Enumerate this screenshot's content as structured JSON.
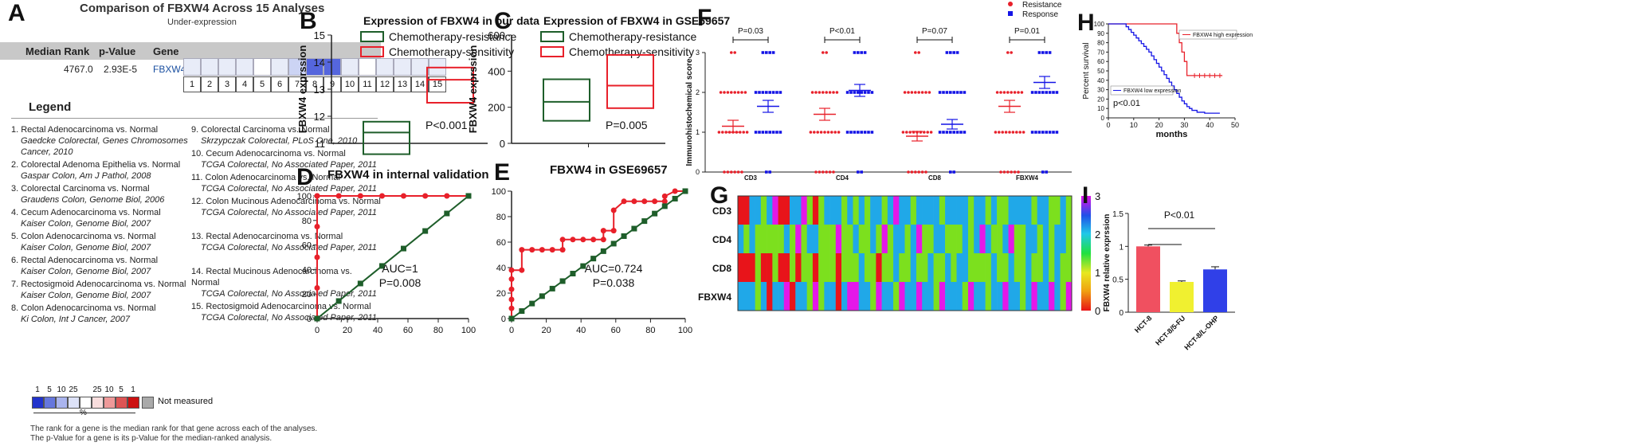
{
  "panels": {
    "A": {
      "letter": "A",
      "title": "Comparison of FBXW4 Across 15 Analyses",
      "subtitle": "Under-expression",
      "header": {
        "rank": "Median Rank",
        "pvalue": "p-Value",
        "gene": "Gene"
      },
      "row": {
        "rank": "4767.0",
        "pvalue": "2.93E-5",
        "gene": "FBXW4"
      },
      "cell_numbers": [
        "1",
        "2",
        "3",
        "4",
        "5",
        "6",
        "7",
        "8",
        "9",
        "10",
        "11",
        "12",
        "13",
        "14",
        "15"
      ],
      "cell_colors": [
        "#e8ecf8",
        "#e8ecf8",
        "#e8ecf8",
        "#e8ecf8",
        "#ffffff",
        "#e8ecf8",
        "#ccd4f4",
        "#5566dd",
        "#5566dd",
        "#e8ecf8",
        "#ffffff",
        "#e8ecf8",
        "#e8ecf8",
        "#e8ecf8",
        "#e8ecf8"
      ],
      "legend_heading": "Legend",
      "legend_left": [
        {
          "title": "1. Rectal Adenocarcinoma vs. Normal",
          "ref": "Gaedcke Colorectal, Genes Chromosomes Cancer, 2010"
        },
        {
          "title": "2. Colorectal Adenoma Epithelia vs. Normal",
          "ref": "Gaspar Colon, Am J Pathol, 2008"
        },
        {
          "title": "3. Colorectal Carcinoma vs. Normal",
          "ref": "Graudens Colon, Genome Biol, 2006"
        },
        {
          "title": "4. Cecum Adenocarcinoma vs. Normal",
          "ref": "Kaiser Colon, Genome Biol, 2007"
        },
        {
          "title": "5. Colon Adenocarcinoma vs. Normal",
          "ref": "Kaiser Colon, Genome Biol, 2007"
        },
        {
          "title": "6. Rectal Adenocarcinoma vs. Normal",
          "ref": "Kaiser Colon, Genome Biol, 2007"
        },
        {
          "title": "7. Rectosigmoid Adenocarcinoma vs. Normal",
          "ref": "Kaiser Colon, Genome Biol, 2007"
        },
        {
          "title": "8. Colon Adenocarcinoma vs. Normal",
          "ref": "Ki Colon, Int J Cancer, 2007"
        }
      ],
      "legend_right": [
        {
          "title": "9. Colorectal Carcinoma vs. Normal",
          "ref": "Skrzypczak Colorectal, PLoS One, 2010"
        },
        {
          "title": "10. Cecum Adenocarcinoma vs. Normal",
          "ref": "TCGA Colorectal, No Associated Paper, 2011"
        },
        {
          "title": "11. Colon Adenocarcinoma vs. Normal",
          "ref": "TCGA Colorectal, No Associated Paper, 2011"
        },
        {
          "title": "12. Colon Mucinous Adenocarcinoma vs. Normal",
          "ref": "TCGA Colorectal, No Associated Paper, 2011"
        },
        {
          "title": "13. Rectal Adenocarcinoma vs. Normal",
          "ref": "TCGA Colorectal, No Associated Paper, 2011"
        },
        {
          "title": "14. Rectal Mucinous Adenocarcinoma vs. Normal",
          "ref": "TCGA Colorectal, No Associated Paper, 2011"
        },
        {
          "title": "15. Rectosigmoid Adenocarcinoma vs. Normal",
          "ref": "TCGA Colorectal, No Associated Paper, 2011"
        }
      ],
      "scale_labels": [
        "1",
        "5",
        "10",
        "25",
        "",
        "25",
        "10",
        "5",
        "1"
      ],
      "scale_colors": [
        "#2233cc",
        "#6677dd",
        "#aab4ee",
        "#dde2f8",
        "#ffffff",
        "#f8dddd",
        "#ee9999",
        "#dd5555",
        "#cc1111"
      ],
      "scale_unit": "%",
      "not_measured": "Not measured",
      "footnote1": "The rank for a gene is the median rank for that gene across each of the analyses.",
      "footnote2": "The p-Value for a gene is its p-Value for the median-ranked analysis."
    },
    "B": {
      "letter": "B"
    },
    "C": {
      "letter": "C"
    },
    "D": {
      "letter": "D"
    },
    "E": {
      "letter": "E"
    },
    "F": {
      "letter": "F"
    },
    "G": {
      "letter": "G"
    },
    "H": {
      "letter": "H"
    },
    "I": {
      "letter": "I"
    }
  },
  "colors": {
    "green": "#1e5e2a",
    "red": "#e8202a",
    "blue": "#1414e6",
    "grid": "#222222"
  },
  "chart_data": [
    {
      "id": "B",
      "type": "box",
      "title": "Expression of FBXW4 in our data",
      "ylabel": "FBXW4 exprssion",
      "ylim": [
        11,
        15
      ],
      "yticks": [
        11,
        12,
        13,
        14,
        15
      ],
      "legend": [
        "Chemotherapy-resistance",
        "Chemotherapy-sensitivity"
      ],
      "boxes": [
        {
          "name": "Chemotherapy-resistance",
          "low": 10.6,
          "mid": 11.4,
          "high": 11.8
        },
        {
          "name": "Chemotherapy-sensitivity",
          "low": 12.5,
          "mid": 13.35,
          "high": 13.8
        }
      ],
      "annotation": "P<0.001"
    },
    {
      "id": "C",
      "type": "box",
      "title": "Expression of FBXW4 in GSE69657",
      "ylabel": "FBXW4 exprssion",
      "ylim": [
        0,
        600
      ],
      "yticks": [
        0,
        200,
        400,
        600
      ],
      "legend": [
        "Chemotherapy-resistance",
        "Chemotherapy-sensitivity"
      ],
      "boxes": [
        {
          "name": "Chemotherapy-resistance",
          "low": 125,
          "mid": 230,
          "high": 355
        },
        {
          "name": "Chemotherapy-sensitivity",
          "low": 195,
          "mid": 320,
          "high": 490
        }
      ],
      "annotation": "P=0.005"
    },
    {
      "id": "D",
      "type": "line",
      "title": "FBXW4 in internal validation",
      "xlim": [
        0,
        100
      ],
      "ylim": [
        0,
        100
      ],
      "xticks": [
        0,
        20,
        40,
        60,
        80,
        100
      ],
      "yticks": [
        0,
        20,
        40,
        60,
        80,
        100
      ],
      "series": [
        {
          "name": "ROC",
          "x": [
            0,
            0,
            0,
            0,
            0,
            0,
            14.3,
            28.6,
            42.9,
            57.1,
            71.4,
            85.7,
            100
          ],
          "y": [
            0,
            25,
            50,
            75,
            100,
            100,
            100,
            100,
            100,
            100,
            100,
            100,
            100
          ]
        },
        {
          "name": "Reference",
          "x": [
            0,
            14.3,
            28.6,
            42.9,
            57.1,
            71.4,
            85.7,
            100
          ],
          "y": [
            0,
            14.3,
            28.6,
            42.9,
            57.1,
            71.4,
            85.7,
            100
          ]
        }
      ],
      "annotation": [
        "AUC=1",
        "P=0.008"
      ]
    },
    {
      "id": "E",
      "type": "line",
      "title": "FBXW4 in GSE69657",
      "xlim": [
        0,
        100
      ],
      "ylim": [
        0,
        100
      ],
      "xticks": [
        0,
        20,
        40,
        60,
        80,
        100
      ],
      "yticks": [
        0,
        20,
        40,
        60,
        80,
        100
      ],
      "series": [
        {
          "name": "ROC",
          "x": [
            0,
            0,
            0,
            0,
            0,
            0,
            5.9,
            5.9,
            11.8,
            17.6,
            23.5,
            29.4,
            29.4,
            35.3,
            41.2,
            47.1,
            52.9,
            52.9,
            58.8,
            58.8,
            64.7,
            70.6,
            76.5,
            82.4,
            88.2,
            88.2,
            94.1,
            100
          ],
          "y": [
            0,
            8,
            15,
            23,
            31,
            38,
            38,
            54,
            54,
            54,
            54,
            54,
            62,
            62,
            62,
            62,
            62,
            69,
            69,
            85,
            92,
            92,
            92,
            92,
            92,
            96,
            100,
            100
          ]
        },
        {
          "name": "Reference",
          "x": [
            0,
            5.9,
            11.8,
            17.6,
            23.5,
            29.4,
            35.3,
            41.2,
            47.1,
            52.9,
            58.8,
            64.7,
            70.6,
            76.5,
            82.4,
            88.2,
            94.1,
            100
          ],
          "y": [
            0,
            5.9,
            11.8,
            17.6,
            23.5,
            29.4,
            35.3,
            41.2,
            47.1,
            52.9,
            58.8,
            64.7,
            70.6,
            76.5,
            82.4,
            88.2,
            94.1,
            100
          ]
        }
      ],
      "annotation": [
        "AUC=0.724",
        "P=0.038"
      ]
    },
    {
      "id": "F",
      "type": "scatter",
      "ylabel": "Immunohistochemical score",
      "ylim": [
        0,
        3
      ],
      "yticks": [
        0,
        1,
        2,
        3
      ],
      "categories": [
        "CD3",
        "CD4",
        "CD8",
        "FBXW4"
      ],
      "legend": [
        "Resistance",
        "Response"
      ],
      "groups": [
        {
          "category": "CD3",
          "resistance_mean": 1.15,
          "resistance_err": 0.15,
          "response_mean": 1.65,
          "response_err": 0.15,
          "p": "P=0.03"
        },
        {
          "category": "CD4",
          "resistance_mean": 1.45,
          "resistance_err": 0.15,
          "response_mean": 2.05,
          "response_err": 0.15,
          "p": "P<0.01"
        },
        {
          "category": "CD8",
          "resistance_mean": 0.9,
          "resistance_err": 0.12,
          "response_mean": 1.2,
          "response_err": 0.12,
          "p": "P=0.07"
        },
        {
          "category": "FBXW4",
          "resistance_mean": 1.65,
          "resistance_err": 0.15,
          "response_mean": 2.25,
          "response_err": 0.15,
          "p": "P=0.01"
        }
      ]
    },
    {
      "id": "G",
      "type": "heatmap",
      "rows": [
        "CD3",
        "CD4",
        "CD8",
        "FBXW4"
      ],
      "colorbar_ticks": [
        "0",
        "1",
        "2",
        "3"
      ],
      "values": [
        [
          0,
          0,
          2,
          2,
          1,
          2,
          3,
          0,
          0,
          2,
          2,
          3,
          1,
          0,
          1,
          2,
          2,
          2,
          1,
          2,
          1,
          2,
          1,
          2,
          2,
          1,
          2,
          3,
          2,
          2,
          1,
          2,
          2,
          2,
          2,
          1,
          2,
          2,
          2,
          2,
          1,
          2,
          2,
          1,
          2,
          1,
          1,
          2,
          2,
          2,
          2,
          1,
          2,
          2,
          1,
          1,
          2,
          1
        ],
        [
          2,
          1,
          2,
          1,
          1,
          1,
          1,
          1,
          2,
          1,
          3,
          1,
          2,
          2,
          1,
          1,
          1,
          3,
          1,
          1,
          2,
          1,
          1,
          2,
          1,
          3,
          1,
          2,
          2,
          1,
          2,
          3,
          1,
          1,
          2,
          2,
          1,
          1,
          1,
          2,
          1,
          2,
          3,
          2,
          1,
          1,
          2,
          3,
          1,
          1,
          2,
          2,
          1,
          2,
          1,
          2,
          2,
          1
        ],
        [
          0,
          0,
          0,
          1,
          0,
          0,
          1,
          0,
          0,
          1,
          0,
          1,
          1,
          0,
          1,
          1,
          1,
          0,
          1,
          1,
          1,
          2,
          1,
          1,
          0,
          1,
          1,
          2,
          1,
          1,
          2,
          1,
          1,
          2,
          1,
          1,
          2,
          1,
          2,
          2,
          1,
          1,
          1,
          1,
          2,
          1,
          1,
          2,
          1,
          1,
          2,
          1,
          1,
          2,
          1,
          2,
          1,
          1
        ],
        [
          2,
          2,
          2,
          1,
          2,
          0,
          2,
          2,
          3,
          0,
          2,
          2,
          1,
          3,
          1,
          2,
          2,
          0,
          2,
          3,
          3,
          2,
          2,
          1,
          3,
          2,
          2,
          1,
          3,
          2,
          2,
          3,
          2,
          2,
          1,
          3,
          2,
          2,
          2,
          1,
          3,
          2,
          2,
          1,
          2,
          2,
          3,
          2,
          2,
          1,
          2,
          3,
          2,
          2,
          3,
          2,
          1,
          3
        ]
      ]
    },
    {
      "id": "H",
      "type": "line",
      "xlabel": "months",
      "ylabel": "Percent survival",
      "xlim": [
        0,
        50
      ],
      "ylim": [
        0,
        100
      ],
      "xticks": [
        0,
        10,
        20,
        30,
        40,
        50
      ],
      "yticks": [
        0,
        10,
        20,
        30,
        40,
        50,
        60,
        70,
        80,
        90,
        100
      ],
      "series": [
        {
          "name": "FBXW4 high expression",
          "x": [
            0,
            26,
            27,
            28,
            29,
            30,
            31,
            45
          ],
          "y": [
            100,
            100,
            90,
            80,
            70,
            60,
            45,
            45
          ]
        },
        {
          "name": "FBXW4 low expression",
          "x": [
            0,
            7,
            8,
            9,
            10,
            11,
            12,
            13,
            14,
            15,
            16,
            17,
            18,
            19,
            20,
            21,
            22,
            23,
            24,
            25,
            26,
            27,
            28,
            29,
            30,
            31,
            32,
            33,
            35,
            38,
            42,
            44
          ],
          "y": [
            100,
            97,
            94,
            91,
            88,
            85,
            82,
            79,
            76,
            73,
            70,
            66,
            62,
            58,
            54,
            50,
            46,
            42,
            38,
            34,
            30,
            26,
            22,
            18,
            15,
            12,
            10,
            8,
            6,
            5,
            5,
            5
          ]
        }
      ],
      "annotation": "p<0.01"
    },
    {
      "id": "I",
      "type": "bar",
      "ylabel": "FBXW4 relative exprssion",
      "ylim": [
        0,
        1.5
      ],
      "yticks": [
        0,
        0.5,
        1,
        1.5
      ],
      "categories": [
        "HCT-8",
        "HCT-8/5-FU",
        "HCT-8/L-OHP"
      ],
      "values": [
        1.0,
        0.46,
        0.65
      ],
      "errors": [
        0.02,
        0.015,
        0.04
      ],
      "bar_colors": [
        "#f05060",
        "#f0f030",
        "#3040e8"
      ],
      "annotation": "P<0.01"
    }
  ]
}
